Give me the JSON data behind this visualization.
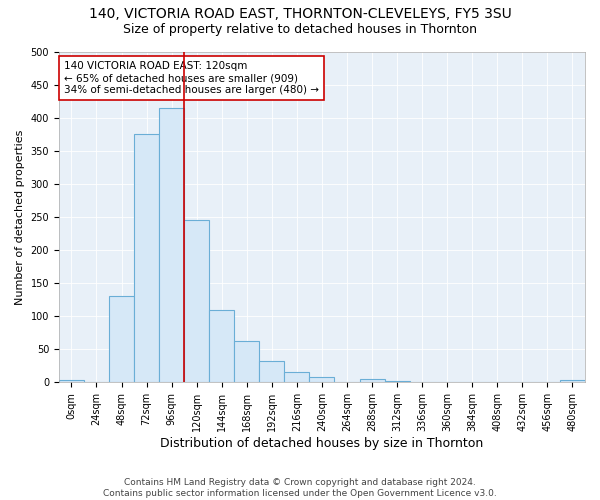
{
  "title": "140, VICTORIA ROAD EAST, THORNTON-CLEVELEYS, FY5 3SU",
  "subtitle": "Size of property relative to detached houses in Thornton",
  "xlabel": "Distribution of detached houses by size in Thornton",
  "ylabel": "Number of detached properties",
  "footnote1": "Contains HM Land Registry data © Crown copyright and database right 2024.",
  "footnote2": "Contains public sector information licensed under the Open Government Licence v3.0.",
  "bar_labels": [
    "0sqm",
    "24sqm",
    "48sqm",
    "72sqm",
    "96sqm",
    "120sqm",
    "144sqm",
    "168sqm",
    "192sqm",
    "216sqm",
    "240sqm",
    "264sqm",
    "288sqm",
    "312sqm",
    "336sqm",
    "360sqm",
    "384sqm",
    "408sqm",
    "432sqm",
    "456sqm",
    "480sqm"
  ],
  "bar_values": [
    3,
    0,
    130,
    375,
    415,
    245,
    110,
    63,
    33,
    16,
    8,
    0,
    5,
    2,
    0,
    0,
    0,
    0,
    0,
    0,
    3
  ],
  "bar_width": 1.0,
  "bar_color": "#d6e8f7",
  "bar_edgecolor": "#6aaed6",
  "bar_linewidth": 0.8,
  "vline_x": 5.0,
  "vline_color": "#cc0000",
  "vline_linewidth": 1.2,
  "annotation_text": "140 VICTORIA ROAD EAST: 120sqm\n← 65% of detached houses are smaller (909)\n34% of semi-detached houses are larger (480) →",
  "annotation_box_edgecolor": "#cc0000",
  "annotation_box_facecolor": "white",
  "ylim": [
    0,
    500
  ],
  "yticks": [
    0,
    50,
    100,
    150,
    200,
    250,
    300,
    350,
    400,
    450,
    500
  ],
  "axes_background": "#e8f0f8",
  "title_fontsize": 10,
  "subtitle_fontsize": 9,
  "xlabel_fontsize": 9,
  "ylabel_fontsize": 8,
  "tick_fontsize": 7,
  "annotation_fontsize": 7.5,
  "footnote_fontsize": 6.5
}
